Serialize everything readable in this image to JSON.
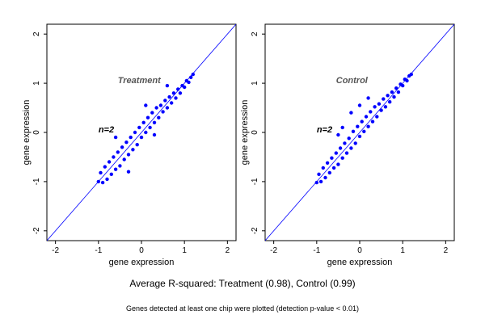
{
  "captions": {
    "main": "Average R-squared: Treatment (0.98), Control (0.99)",
    "sub": "Genes detected at least one chip were plotted (detection p-value < 0.01)"
  },
  "chart_data": [
    {
      "type": "scatter",
      "annotation_title": "Treatment",
      "annotation_n": "n=2",
      "xlabel": "gene expression",
      "ylabel": "gene expression",
      "xlim": [
        -2.2,
        2.2
      ],
      "ylim": [
        -2.2,
        2.2
      ],
      "xticks": [
        -2,
        -1,
        0,
        1,
        2
      ],
      "yticks": [
        -2,
        -1,
        0,
        1,
        2
      ],
      "grid": false,
      "reference_line": {
        "slope": 1,
        "intercept": 0,
        "color": "#0000ff"
      },
      "point_color": "#0000ff",
      "point_cloud": {
        "description_of_spread": "dense points along identity line",
        "x_range": [
          -1.05,
          1.25
        ],
        "y_range": [
          -1.05,
          1.25
        ],
        "r_squared": 0.98
      },
      "points": [
        [
          -1.0,
          -1.0
        ],
        [
          -0.95,
          -0.82
        ],
        [
          -0.9,
          -1.02
        ],
        [
          -0.85,
          -0.7
        ],
        [
          -0.8,
          -0.95
        ],
        [
          -0.75,
          -0.6
        ],
        [
          -0.7,
          -0.85
        ],
        [
          -0.65,
          -0.5
        ],
        [
          -0.6,
          -0.75
        ],
        [
          -0.55,
          -0.4
        ],
        [
          -0.5,
          -0.68
        ],
        [
          -0.45,
          -0.3
        ],
        [
          -0.4,
          -0.55
        ],
        [
          -0.35,
          -0.2
        ],
        [
          -0.3,
          -0.45
        ],
        [
          -0.25,
          -0.1
        ],
        [
          -0.2,
          -0.35
        ],
        [
          -0.15,
          0.0
        ],
        [
          -0.1,
          -0.25
        ],
        [
          -0.05,
          0.1
        ],
        [
          0.0,
          -0.1
        ],
        [
          0.05,
          0.2
        ],
        [
          0.1,
          0.0
        ],
        [
          0.15,
          0.3
        ],
        [
          0.2,
          0.1
        ],
        [
          0.25,
          0.4
        ],
        [
          0.3,
          0.2
        ],
        [
          0.35,
          0.5
        ],
        [
          0.4,
          0.3
        ],
        [
          0.45,
          0.55
        ],
        [
          0.5,
          0.42
        ],
        [
          0.55,
          0.65
        ],
        [
          0.6,
          0.5
        ],
        [
          0.65,
          0.72
        ],
        [
          0.7,
          0.6
        ],
        [
          0.75,
          0.8
        ],
        [
          0.8,
          0.7
        ],
        [
          0.85,
          0.88
        ],
        [
          0.9,
          0.8
        ],
        [
          0.95,
          0.95
        ],
        [
          1.0,
          0.92
        ],
        [
          1.05,
          1.05
        ],
        [
          1.1,
          1.02
        ],
        [
          1.15,
          1.12
        ],
        [
          1.2,
          1.18
        ],
        [
          -0.3,
          -0.8
        ],
        [
          0.1,
          0.55
        ],
        [
          -0.6,
          -0.1
        ],
        [
          0.3,
          -0.05
        ],
        [
          0.6,
          0.95
        ]
      ]
    },
    {
      "type": "scatter",
      "annotation_title": "Control",
      "annotation_n": "n=2",
      "xlabel": "gene expression",
      "ylabel": "gene expression",
      "xlim": [
        -2.2,
        2.2
      ],
      "ylim": [
        -2.2,
        2.2
      ],
      "xticks": [
        -2,
        -1,
        0,
        1,
        2
      ],
      "yticks": [
        -2,
        -1,
        0,
        1,
        2
      ],
      "grid": false,
      "reference_line": {
        "slope": 1,
        "intercept": 0,
        "color": "#0000ff"
      },
      "point_color": "#0000ff",
      "point_cloud": {
        "description_of_spread": "dense points along identity line",
        "x_range": [
          -1.05,
          1.2
        ],
        "y_range": [
          -1.05,
          1.2
        ],
        "r_squared": 0.99
      },
      "points": [
        [
          -1.0,
          -1.02
        ],
        [
          -0.95,
          -0.85
        ],
        [
          -0.9,
          -1.0
        ],
        [
          -0.85,
          -0.72
        ],
        [
          -0.8,
          -0.92
        ],
        [
          -0.75,
          -0.62
        ],
        [
          -0.7,
          -0.82
        ],
        [
          -0.65,
          -0.52
        ],
        [
          -0.6,
          -0.72
        ],
        [
          -0.55,
          -0.42
        ],
        [
          -0.5,
          -0.65
        ],
        [
          -0.45,
          -0.32
        ],
        [
          -0.4,
          -0.52
        ],
        [
          -0.35,
          -0.22
        ],
        [
          -0.3,
          -0.42
        ],
        [
          -0.25,
          -0.12
        ],
        [
          -0.2,
          -0.32
        ],
        [
          -0.15,
          0.02
        ],
        [
          -0.1,
          -0.22
        ],
        [
          -0.05,
          0.12
        ],
        [
          0.0,
          -0.08
        ],
        [
          0.05,
          0.22
        ],
        [
          0.1,
          0.02
        ],
        [
          0.15,
          0.32
        ],
        [
          0.2,
          0.12
        ],
        [
          0.25,
          0.42
        ],
        [
          0.3,
          0.22
        ],
        [
          0.35,
          0.52
        ],
        [
          0.4,
          0.32
        ],
        [
          0.45,
          0.58
        ],
        [
          0.5,
          0.45
        ],
        [
          0.55,
          0.68
        ],
        [
          0.6,
          0.52
        ],
        [
          0.65,
          0.75
        ],
        [
          0.7,
          0.62
        ],
        [
          0.75,
          0.82
        ],
        [
          0.8,
          0.72
        ],
        [
          0.85,
          0.9
        ],
        [
          0.9,
          0.82
        ],
        [
          0.95,
          0.98
        ],
        [
          1.0,
          0.95
        ],
        [
          1.05,
          1.08
        ],
        [
          1.1,
          1.05
        ],
        [
          1.15,
          1.15
        ],
        [
          1.2,
          1.18
        ],
        [
          -0.2,
          0.4
        ],
        [
          0.0,
          0.55
        ],
        [
          -0.4,
          0.1
        ],
        [
          0.2,
          0.7
        ],
        [
          -0.5,
          -0.05
        ]
      ]
    }
  ]
}
